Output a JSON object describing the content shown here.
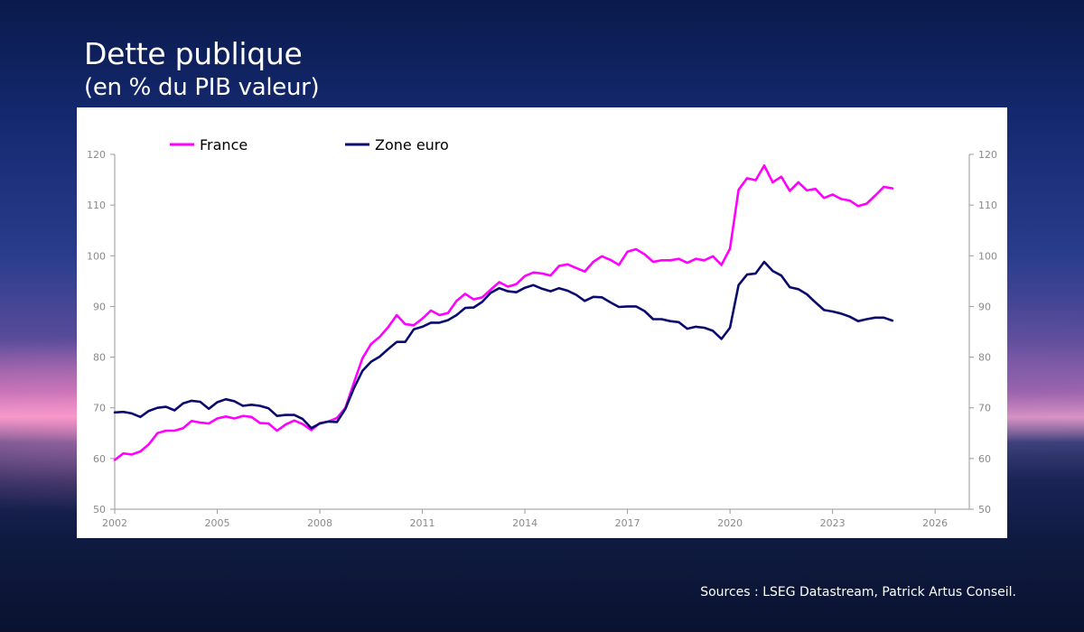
{
  "slide": {
    "title": "Dette publique",
    "subtitle": "(en % du PIB valeur)",
    "sources": "Sources : LSEG Datastream, Patrick Artus Conseil."
  },
  "colors": {
    "france": "#ff00ff",
    "zone_euro": "#0a0a6e",
    "axis": "#9a9a9a",
    "tick_text": "#8a8a8a"
  },
  "chart_data": {
    "type": "line",
    "title": "Dette publique",
    "subtitle": "(en % du PIB valeur)",
    "xlabel": "",
    "ylabel": "",
    "xlim": [
      2002,
      2027
    ],
    "ylim": [
      50,
      120
    ],
    "x_ticks": [
      2002,
      2005,
      2008,
      2011,
      2014,
      2017,
      2020,
      2023,
      2026
    ],
    "y_ticks": [
      50,
      60,
      70,
      80,
      90,
      100,
      110,
      120
    ],
    "legend_position": "top-left",
    "grid": false,
    "series": [
      {
        "name": "France",
        "color": "#ff00ff",
        "x": [
          2002.0,
          2002.25,
          2002.5,
          2002.75,
          2003.0,
          2003.25,
          2003.5,
          2003.75,
          2004.0,
          2004.25,
          2004.5,
          2004.75,
          2005.0,
          2005.25,
          2005.5,
          2005.75,
          2006.0,
          2006.25,
          2006.5,
          2006.75,
          2007.0,
          2007.25,
          2007.5,
          2007.75,
          2008.0,
          2008.25,
          2008.5,
          2008.75,
          2009.0,
          2009.25,
          2009.5,
          2009.75,
          2010.0,
          2010.25,
          2010.5,
          2010.75,
          2011.0,
          2011.25,
          2011.5,
          2011.75,
          2012.0,
          2012.25,
          2012.5,
          2012.75,
          2013.0,
          2013.25,
          2013.5,
          2013.75,
          2014.0,
          2014.25,
          2014.5,
          2014.75,
          2015.0,
          2015.25,
          2015.5,
          2015.75,
          2016.0,
          2016.25,
          2016.5,
          2016.75,
          2017.0,
          2017.25,
          2017.5,
          2017.75,
          2018.0,
          2018.25,
          2018.5,
          2018.75,
          2019.0,
          2019.25,
          2019.5,
          2019.75,
          2020.0,
          2020.25,
          2020.5,
          2020.75,
          2021.0,
          2021.25,
          2021.5,
          2021.75,
          2022.0,
          2022.25,
          2022.5,
          2022.75,
          2023.0,
          2023.25,
          2023.5,
          2023.75,
          2024.0,
          2024.25,
          2024.5,
          2024.75
        ],
        "values": [
          59.7,
          61.0,
          60.8,
          61.4,
          62.8,
          65.0,
          65.5,
          65.5,
          66.0,
          67.4,
          67.1,
          66.9,
          67.9,
          68.3,
          67.9,
          68.4,
          68.2,
          67.0,
          66.9,
          65.5,
          66.7,
          67.5,
          66.8,
          65.6,
          67.0,
          67.3,
          68.0,
          70.0,
          75.0,
          79.8,
          82.6,
          84.0,
          85.9,
          88.3,
          86.5,
          86.3,
          87.6,
          89.2,
          88.3,
          88.7,
          91.1,
          92.5,
          91.4,
          91.8,
          93.3,
          94.8,
          93.9,
          94.4,
          96.0,
          96.7,
          96.5,
          96.1,
          98.0,
          98.3,
          97.6,
          96.9,
          98.8,
          99.9,
          99.2,
          98.2,
          100.8,
          101.3,
          100.3,
          98.8,
          99.1,
          99.1,
          99.4,
          98.6,
          99.4,
          99.1,
          99.9,
          98.2,
          101.4,
          113.0,
          115.3,
          114.9,
          117.8,
          114.5,
          115.6,
          112.8,
          114.5,
          112.9,
          113.2,
          111.4,
          112.1,
          111.2,
          110.9,
          109.8,
          110.3,
          111.9,
          113.6,
          113.3
        ]
      },
      {
        "name": "Zone euro",
        "color": "#0a0a6e",
        "x": [
          2002.0,
          2002.25,
          2002.5,
          2002.75,
          2003.0,
          2003.25,
          2003.5,
          2003.75,
          2004.0,
          2004.25,
          2004.5,
          2004.75,
          2005.0,
          2005.25,
          2005.5,
          2005.75,
          2006.0,
          2006.25,
          2006.5,
          2006.75,
          2007.0,
          2007.25,
          2007.5,
          2007.75,
          2008.0,
          2008.25,
          2008.5,
          2008.75,
          2009.0,
          2009.25,
          2009.5,
          2009.75,
          2010.0,
          2010.25,
          2010.5,
          2010.75,
          2011.0,
          2011.25,
          2011.5,
          2011.75,
          2012.0,
          2012.25,
          2012.5,
          2012.75,
          2013.0,
          2013.25,
          2013.5,
          2013.75,
          2014.0,
          2014.25,
          2014.5,
          2014.75,
          2015.0,
          2015.25,
          2015.5,
          2015.75,
          2016.0,
          2016.25,
          2016.5,
          2016.75,
          2017.0,
          2017.25,
          2017.5,
          2017.75,
          2018.0,
          2018.25,
          2018.5,
          2018.75,
          2019.0,
          2019.25,
          2019.5,
          2019.75,
          2020.0,
          2020.25,
          2020.5,
          2020.75,
          2021.0,
          2021.25,
          2021.5,
          2021.75,
          2022.0,
          2022.25,
          2022.5,
          2022.75,
          2023.0,
          2023.25,
          2023.5,
          2023.75,
          2024.0,
          2024.25,
          2024.5,
          2024.75
        ],
        "values": [
          69.1,
          69.2,
          68.9,
          68.2,
          69.4,
          70.0,
          70.2,
          69.5,
          70.9,
          71.4,
          71.2,
          69.8,
          71.1,
          71.7,
          71.3,
          70.4,
          70.6,
          70.4,
          69.9,
          68.4,
          68.6,
          68.6,
          67.8,
          66.0,
          66.9,
          67.3,
          67.2,
          69.8,
          73.9,
          77.3,
          79.1,
          80.1,
          81.6,
          83.0,
          83.0,
          85.5,
          86.0,
          86.8,
          86.8,
          87.3,
          88.3,
          89.7,
          89.8,
          90.9,
          92.7,
          93.6,
          93.0,
          92.8,
          93.7,
          94.2,
          93.5,
          93.0,
          93.6,
          93.1,
          92.3,
          91.1,
          91.9,
          91.8,
          90.8,
          89.9,
          90.0,
          90.0,
          89.1,
          87.5,
          87.5,
          87.1,
          86.9,
          85.6,
          86.0,
          85.8,
          85.2,
          83.6,
          85.8,
          94.2,
          96.3,
          96.5,
          98.8,
          97.0,
          96.1,
          93.8,
          93.4,
          92.4,
          90.8,
          89.3,
          89.0,
          88.6,
          88.0,
          87.1,
          87.5,
          87.8,
          87.8,
          87.2
        ]
      }
    ]
  }
}
